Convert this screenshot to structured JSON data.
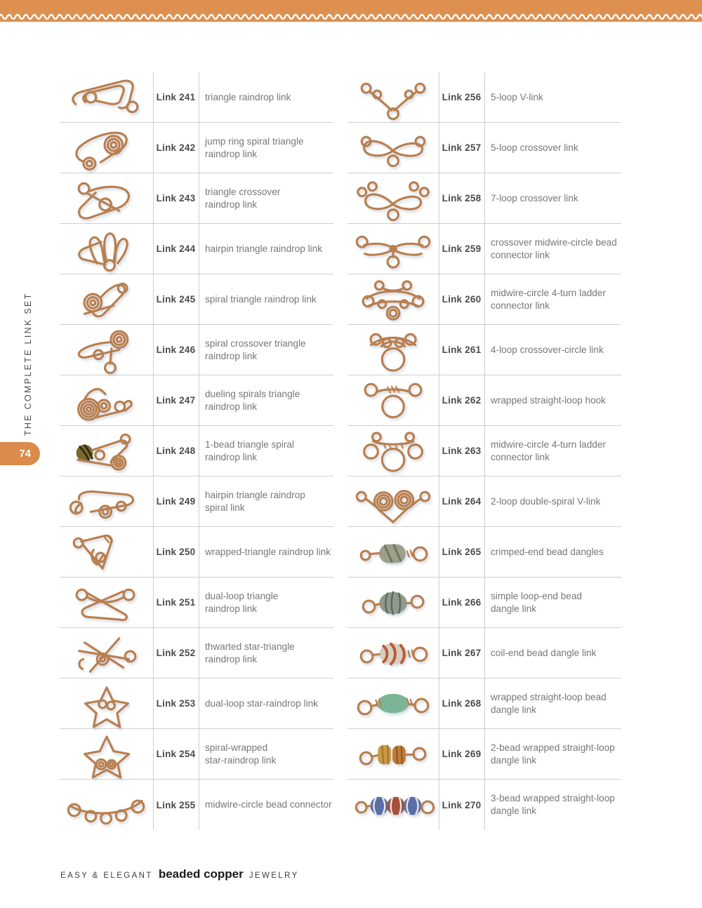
{
  "page": {
    "number": "74",
    "sidebar_title": "THE COMPLETE LINK SET",
    "footer": {
      "pre": "EASY & ELEGANT",
      "title": "beaded copper",
      "post": "JEWELRY"
    }
  },
  "colors": {
    "accent_orange": "#DE9050",
    "tab_orange": "#DB8B4B",
    "copper_wire": "#B97F4E",
    "divider_gray": "#CFCFCF"
  },
  "left_links": [
    {
      "number": "Link 241",
      "description": "triangle raindrop link",
      "image": "triangle-raindrop-link-photo"
    },
    {
      "number": "Link 242",
      "description": "jump ring spiral triangle\nraindrop link",
      "image": "jump-ring-spiral-triangle-raindrop-link-photo"
    },
    {
      "number": "Link 243",
      "description": "triangle crossover\nraindrop link",
      "image": "triangle-crossover-raindrop-link-photo"
    },
    {
      "number": "Link 244",
      "description": "hairpin triangle raindrop link",
      "image": "hairpin-triangle-raindrop-link-photo"
    },
    {
      "number": "Link 245",
      "description": "spiral triangle raindrop link",
      "image": "spiral-triangle-raindrop-link-photo"
    },
    {
      "number": "Link 246",
      "description": "spiral crossover triangle\nraindrop link",
      "image": "spiral-crossover-triangle-raindrop-link-photo"
    },
    {
      "number": "Link 247",
      "description": "dueling spirals triangle\nraindrop link",
      "image": "dueling-spirals-triangle-raindrop-link-photo"
    },
    {
      "number": "Link 248",
      "description": "1-bead triangle spiral\nraindrop link",
      "image": "one-bead-triangle-spiral-raindrop-link-photo",
      "bead_colors": [
        "#7a6a2a"
      ]
    },
    {
      "number": "Link 249",
      "description": "hairpin triangle raindrop\nspiral link",
      "image": "hairpin-triangle-raindrop-spiral-link-photo"
    },
    {
      "number": "Link 250",
      "description": "wrapped-triangle raindrop link",
      "image": "wrapped-triangle-raindrop-link-photo"
    },
    {
      "number": "Link 251",
      "description": "dual-loop triangle\nraindrop link",
      "image": "dual-loop-triangle-raindrop-link-photo"
    },
    {
      "number": "Link 252",
      "description": "thwarted star-triangle\nraindrop link",
      "image": "thwarted-star-triangle-raindrop-link-photo"
    },
    {
      "number": "Link 253",
      "description": "dual-loop star-raindrop link",
      "image": "dual-loop-star-raindrop-link-photo"
    },
    {
      "number": "Link 254",
      "description": "spiral-wrapped\nstar-raindrop link",
      "image": "spiral-wrapped-star-raindrop-link-photo"
    },
    {
      "number": "Link 255",
      "description": "midwire-circle bead connector",
      "image": "midwire-circle-bead-connector-photo"
    }
  ],
  "right_links": [
    {
      "number": "Link 256",
      "description": "5-loop V-link",
      "image": "five-loop-v-link-photo"
    },
    {
      "number": "Link 257",
      "description": "5-loop crossover link",
      "image": "five-loop-crossover-link-photo"
    },
    {
      "number": "Link 258",
      "description": "7-loop crossover link",
      "image": "seven-loop-crossover-link-photo"
    },
    {
      "number": "Link 259",
      "description": "crossover midwire-circle bead\nconnector link",
      "image": "crossover-midwire-circle-bead-connector-link-photo"
    },
    {
      "number": "Link 260",
      "description": "midwire-circle 4-turn ladder\nconnector link",
      "image": "midwire-circle-4-turn-ladder-connector-link-photo"
    },
    {
      "number": "Link 261",
      "description": "4-loop crossover-circle link",
      "image": "four-loop-crossover-circle-link-photo"
    },
    {
      "number": "Link 262",
      "description": "wrapped straight-loop hook",
      "image": "wrapped-straight-loop-hook-photo"
    },
    {
      "number": "Link 263",
      "description": "midwire-circle 4-turn ladder\nconnector link",
      "image": "midwire-circle-4-turn-ladder-connector-link-photo"
    },
    {
      "number": "Link 264",
      "description": "2-loop double-spiral V-link",
      "image": "two-loop-double-spiral-v-link-photo"
    },
    {
      "number": "Link 265",
      "description": "crimped-end bead dangles",
      "image": "crimped-end-bead-dangles-photo",
      "bead_colors": [
        "#9aa08b"
      ]
    },
    {
      "number": "Link 266",
      "description": "simple loop-end bead\ndangle link",
      "image": "simple-loop-end-bead-dangle-link-photo",
      "bead_colors": [
        "#8f9a8c"
      ]
    },
    {
      "number": "Link 267",
      "description": "coil-end bead dangle link",
      "image": "coil-end-bead-dangle-link-photo",
      "bead_colors": [
        "#d8cec0",
        "#b85c36"
      ]
    },
    {
      "number": "Link 268",
      "description": "wrapped straight-loop bead\ndangle link",
      "image": "wrapped-straight-loop-bead-dangle-link-photo",
      "bead_colors": [
        "#7cb596"
      ]
    },
    {
      "number": "Link 269",
      "description": "2-bead wrapped straight-loop\ndangle link",
      "image": "two-bead-wrapped-straight-loop-dangle-link-photo",
      "bead_colors": [
        "#c89a45",
        "#bd7e3b"
      ]
    },
    {
      "number": "Link 270",
      "description": "3-bead wrapped straight-loop\ndangle link",
      "image": "three-bead-wrapped-straight-loop-dangle-link-photo",
      "bead_colors": [
        "#5a6ea8",
        "#a5503c",
        "#5a6ea8"
      ]
    }
  ]
}
